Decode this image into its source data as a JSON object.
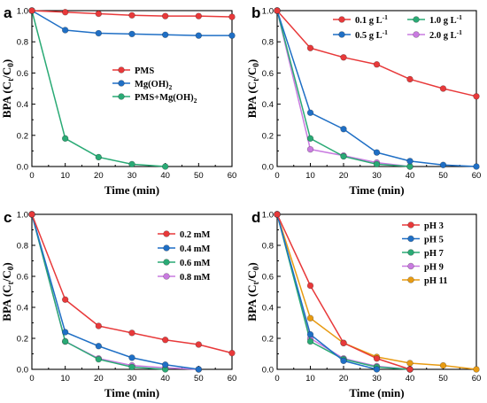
{
  "figure": {
    "panel_labels": [
      "a",
      "b",
      "c",
      "d"
    ]
  },
  "chart_data": [
    {
      "panel": "a",
      "type": "line",
      "xlabel": "Time (min)",
      "ylabel": "BPA (C_t/C_0)",
      "xlim": [
        0,
        60
      ],
      "ylim": [
        0,
        1.0
      ],
      "x": [
        0,
        10,
        20,
        30,
        40,
        50,
        60
      ],
      "xticks": [
        "0",
        "10",
        "20",
        "30",
        "40",
        "50",
        "60"
      ],
      "yticks": [
        "0.0",
        "0.2",
        "0.4",
        "0.6",
        "0.8",
        "1.0"
      ],
      "legend_position": "center-right",
      "series": [
        {
          "name": "PMS",
          "color": "#e8393a",
          "x": [
            0,
            10,
            20,
            30,
            40,
            50,
            60
          ],
          "values": [
            1.0,
            0.99,
            0.98,
            0.97,
            0.965,
            0.965,
            0.96
          ]
        },
        {
          "name": "Mg(OH)_2",
          "color": "#1f6fc5",
          "x": [
            0,
            10,
            20,
            30,
            40,
            50,
            60
          ],
          "values": [
            1.0,
            0.875,
            0.855,
            0.85,
            0.845,
            0.84,
            0.84
          ]
        },
        {
          "name": "PMS+Mg(OH)_2",
          "color": "#2aaa75",
          "x": [
            0,
            10,
            20,
            30,
            40
          ],
          "values": [
            1.0,
            0.18,
            0.06,
            0.015,
            0.0
          ]
        }
      ]
    },
    {
      "panel": "b",
      "type": "line",
      "xlabel": "Time (min)",
      "ylabel": "BPA (C_t/C_0)",
      "xlim": [
        0,
        60
      ],
      "ylim": [
        0,
        1.0
      ],
      "xticks": [
        "0",
        "10",
        "20",
        "30",
        "40",
        "50",
        "60"
      ],
      "yticks": [
        "0.0",
        "0.2",
        "0.4",
        "0.6",
        "0.8",
        "1.0"
      ],
      "legend_position": "top-right",
      "series": [
        {
          "name": "0.1 g L^-1",
          "color": "#e8393a",
          "x": [
            0,
            10,
            20,
            30,
            40,
            50,
            60
          ],
          "values": [
            1.0,
            0.76,
            0.7,
            0.655,
            0.56,
            0.5,
            0.45
          ]
        },
        {
          "name": "0.5 g L^-1",
          "color": "#1f6fc5",
          "x": [
            0,
            10,
            20,
            30,
            40,
            50,
            60
          ],
          "values": [
            1.0,
            0.345,
            0.24,
            0.09,
            0.035,
            0.01,
            0.0
          ]
        },
        {
          "name": "1.0 g L^-1",
          "color": "#2aaa75",
          "x": [
            0,
            10,
            20,
            30,
            40
          ],
          "values": [
            1.0,
            0.18,
            0.065,
            0.015,
            0.0
          ]
        },
        {
          "name": "2.0 g L^-1",
          "color": "#c97be0",
          "x": [
            0,
            10,
            20,
            30,
            40
          ],
          "values": [
            1.0,
            0.11,
            0.07,
            0.025,
            0.0
          ]
        }
      ]
    },
    {
      "panel": "c",
      "type": "line",
      "xlabel": "Time (min)",
      "ylabel": "BPA (C_t/C_0)",
      "xlim": [
        0,
        60
      ],
      "ylim": [
        0,
        1.0
      ],
      "xticks": [
        "0",
        "10",
        "20",
        "30",
        "40",
        "50",
        "60"
      ],
      "yticks": [
        "0.0",
        "0.2",
        "0.4",
        "0.6",
        "0.8",
        "1.0"
      ],
      "legend_position": "top-right",
      "series": [
        {
          "name": "0.2 mM",
          "color": "#e8393a",
          "x": [
            0,
            10,
            20,
            30,
            40,
            50,
            60
          ],
          "values": [
            1.0,
            0.45,
            0.28,
            0.235,
            0.19,
            0.16,
            0.105
          ]
        },
        {
          "name": "0.4 mM",
          "color": "#1f6fc5",
          "x": [
            0,
            10,
            20,
            30,
            40,
            50
          ],
          "values": [
            1.0,
            0.24,
            0.15,
            0.075,
            0.03,
            0.0
          ]
        },
        {
          "name": "0.6 mM",
          "color": "#2aaa75",
          "x": [
            0,
            10,
            20,
            30,
            40
          ],
          "values": [
            1.0,
            0.18,
            0.065,
            0.015,
            0.0
          ]
        },
        {
          "name": "0.8 mM",
          "color": "#c97be0",
          "x": [
            0,
            10,
            20,
            30,
            40,
            50
          ],
          "values": [
            1.0,
            0.18,
            0.07,
            0.025,
            0.01,
            0.0
          ]
        }
      ]
    },
    {
      "panel": "d",
      "type": "line",
      "xlabel": "Time (min)",
      "ylabel": "BPA (C_t/C_0)",
      "xlim": [
        0,
        60
      ],
      "ylim": [
        0,
        1.0
      ],
      "xticks": [
        "0",
        "10",
        "20",
        "30",
        "40",
        "50",
        "60"
      ],
      "yticks": [
        "0.0",
        "0.2",
        "0.4",
        "0.6",
        "0.8",
        "1.0"
      ],
      "legend_position": "top-right",
      "series": [
        {
          "name": "pH 3",
          "color": "#e8393a",
          "x": [
            0,
            10,
            20,
            30,
            40
          ],
          "values": [
            1.0,
            0.54,
            0.17,
            0.07,
            0.0
          ]
        },
        {
          "name": "pH 5",
          "color": "#1f6fc5",
          "x": [
            0,
            10,
            20,
            30
          ],
          "values": [
            1.0,
            0.225,
            0.055,
            0.0
          ]
        },
        {
          "name": "pH 7",
          "color": "#2aaa75",
          "x": [
            0,
            10,
            20,
            30,
            40
          ],
          "values": [
            1.0,
            0.18,
            0.065,
            0.015,
            0.0
          ]
        },
        {
          "name": "pH 9",
          "color": "#c97be0",
          "x": [
            0,
            10,
            20,
            30,
            40
          ],
          "values": [
            1.0,
            0.2,
            0.07,
            0.02,
            0.0
          ]
        },
        {
          "name": "pH 11",
          "color": "#e89b12",
          "x": [
            0,
            10,
            20,
            30,
            40,
            50,
            60
          ],
          "values": [
            1.0,
            0.33,
            0.17,
            0.08,
            0.04,
            0.025,
            0.0
          ]
        }
      ]
    }
  ]
}
